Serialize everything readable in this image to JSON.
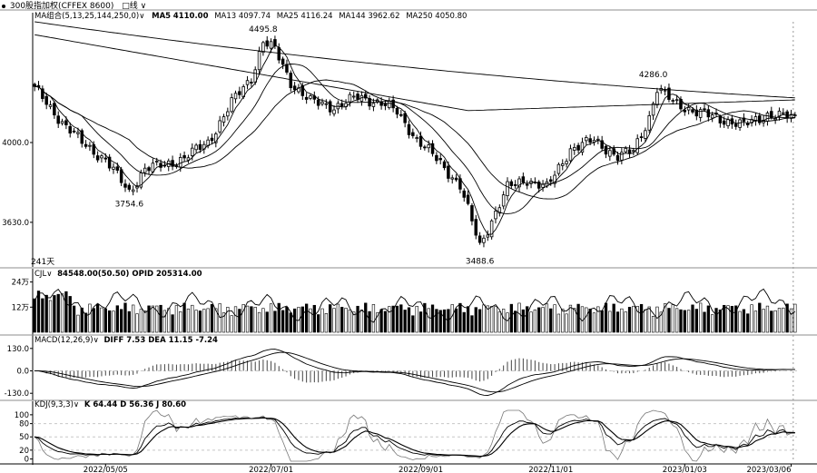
{
  "toolbar": {
    "instrument": "300股指加权(CFFEX 8600)",
    "period_box": "□线",
    "arrow": "∨"
  },
  "chart_data": [
    {
      "id": "price",
      "type": "candlestick",
      "title": "",
      "ma_label": "MA组合(5,13,25,144,250,0)",
      "ma_values": [
        {
          "name": "MA5",
          "value": "4110.00"
        },
        {
          "name": "MA13",
          "value": "4097.74"
        },
        {
          "name": "MA25",
          "value": "4116.24"
        },
        {
          "name": "MA144",
          "value": "3962.62"
        },
        {
          "name": "MA250",
          "value": "4050.80"
        }
      ],
      "y_ticks": [
        "4000.0",
        "3630.0"
      ],
      "ylim": [
        3440,
        4560
      ],
      "annotations": [
        {
          "text": "4495.8",
          "date_index": 58,
          "value": 4495.8
        },
        {
          "text": "3754.6",
          "date_index": 24,
          "value": 3754.6
        },
        {
          "text": "3488.6",
          "date_index": 113,
          "value": 3488.6
        },
        {
          "text": "4286.0",
          "date_index": 157,
          "value": 4286.0
        }
      ],
      "days_label": "241天"
    },
    {
      "id": "volume",
      "type": "bar",
      "label": "CJL",
      "values_text": "84548.00(50.50)  OPID 205314.00",
      "y_ticks": [
        "24万",
        "12万"
      ],
      "ylim": [
        0,
        260000
      ]
    },
    {
      "id": "macd",
      "type": "line",
      "label": "MACD(12,26,9)",
      "values_text": "DIFF 7.53  DEA 11.15  -7.24",
      "y_ticks": [
        "130.0",
        "0.0",
        "-130.0"
      ],
      "ylim": [
        -150,
        150
      ]
    },
    {
      "id": "kdj",
      "type": "line",
      "label": "KDJ(9,3,3)",
      "values_text": "K 64.44  D 56.36  J 80.60",
      "y_ticks": [
        "100",
        "80",
        "50",
        "20",
        "0"
      ],
      "ylim": [
        -5,
        110
      ]
    }
  ],
  "x_axis": {
    "date_labels": [
      "2022/05/05",
      "2022/07/01",
      "2022/09/01",
      "2022/11/01",
      "2023/01/03",
      "2023/03/06"
    ]
  },
  "colors": {
    "up": "#ffffff",
    "down": "#000000",
    "line": "#000000",
    "grid": "#bdbdbd"
  }
}
